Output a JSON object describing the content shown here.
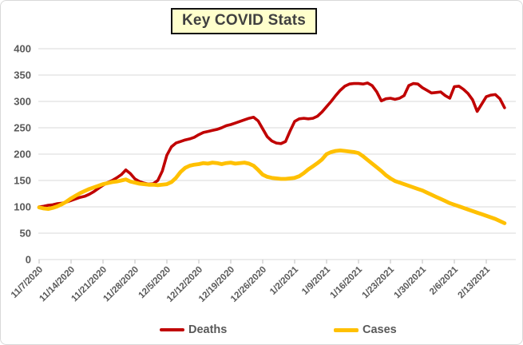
{
  "title": "Key COVID Stats",
  "colors": {
    "deaths_line": "#C00000",
    "cases_line": "#FFC000",
    "title_background": "#FFFFCC",
    "title_border": "#111111",
    "axis_text": "#595959",
    "gridline": "#D9D9D9",
    "tick_mark": "#BFBFBF"
  },
  "legend": {
    "deaths_label": "Deaths",
    "cases_label": "Cases"
  },
  "chart_data": {
    "type": "line",
    "title": "Key COVID Stats",
    "xlabel": "",
    "ylabel": "",
    "grid": true,
    "legend_position": "bottom",
    "ylim": [
      0,
      400
    ],
    "y_ticks": [
      0,
      50,
      100,
      150,
      200,
      250,
      300,
      350,
      400
    ],
    "x_tick_labels": [
      "11/7/2020",
      "11/14/2020",
      "11/21/2020",
      "11/28/2020",
      "12/5/2020",
      "12/12/2020",
      "12/19/2020",
      "12/26/2020",
      "1/2/2021",
      "1/9/2021",
      "1/16/2021",
      "1/23/2021",
      "1/30/2021",
      "2/6/2021",
      "2/13/2021"
    ],
    "x_frequency": "daily, starting 11/7/2020, ticks weekly",
    "days_per_tick": 7,
    "series": [
      {
        "name": "Deaths",
        "color": "#C00000",
        "values": [
          100,
          101,
          103,
          104,
          106,
          107,
          109,
          112,
          115,
          118,
          120,
          124,
          129,
          135,
          141,
          146,
          150,
          155,
          161,
          170,
          163,
          153,
          148,
          145,
          143,
          144,
          150,
          168,
          198,
          214,
          221,
          224,
          227,
          229,
          232,
          237,
          241,
          243,
          245,
          247,
          250,
          254,
          256,
          259,
          262,
          265,
          268,
          270,
          263,
          248,
          233,
          225,
          221,
          220,
          224,
          244,
          262,
          267,
          268,
          267,
          268,
          272,
          280,
          290,
          300,
          311,
          321,
          329,
          333,
          334,
          334,
          333,
          335,
          330,
          318,
          301,
          305,
          306,
          304,
          306,
          311,
          330,
          334,
          333,
          326,
          321,
          316,
          317,
          318,
          311,
          306,
          328,
          329,
          323,
          315,
          303,
          281,
          295,
          309,
          312,
          313,
          305,
          288
        ]
      },
      {
        "name": "Cases",
        "color": "#FFC000",
        "values": [
          99,
          97,
          96,
          98,
          101,
          105,
          110,
          116,
          121,
          126,
          130,
          134,
          137,
          140,
          143,
          145,
          147,
          148,
          150,
          152,
          148,
          146,
          144,
          143,
          142,
          142,
          141,
          142,
          143,
          147,
          155,
          166,
          174,
          178,
          180,
          181,
          183,
          182,
          184,
          183,
          181,
          183,
          184,
          182,
          183,
          184,
          182,
          178,
          170,
          161,
          157,
          155,
          154,
          153,
          153,
          154,
          155,
          158,
          164,
          171,
          177,
          183,
          190,
          200,
          204,
          206,
          207,
          206,
          205,
          204,
          202,
          196,
          189,
          182,
          175,
          168,
          160,
          154,
          149,
          146,
          143,
          140,
          137,
          134,
          131,
          127,
          123,
          119,
          115,
          111,
          107,
          104,
          101,
          98,
          95,
          92,
          89,
          86,
          83,
          80,
          77,
          73,
          69
        ]
      }
    ]
  }
}
